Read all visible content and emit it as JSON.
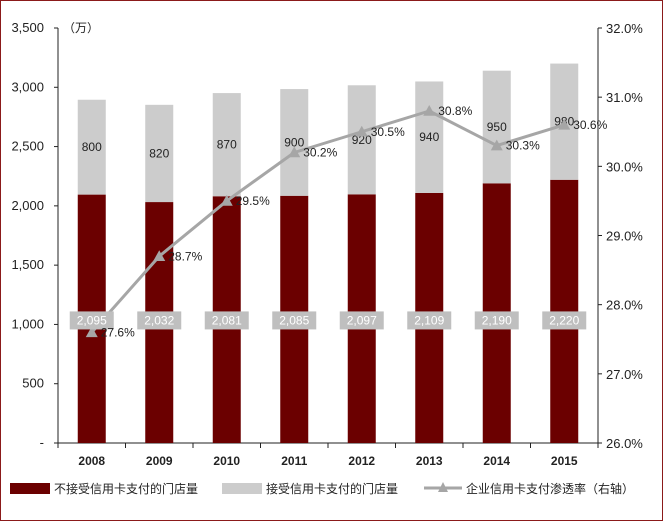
{
  "chart_data": {
    "type": "bar",
    "stacked": true,
    "unit_label": "（万）",
    "categories": [
      "2008",
      "2009",
      "2010",
      "2011",
      "2012",
      "2013",
      "2014",
      "2015"
    ],
    "series": [
      {
        "name": "不接受信用卡支付的门店量",
        "type": "bar",
        "axis": "left",
        "color": "#6b0000",
        "values": [
          2095,
          2032,
          2081,
          2085,
          2097,
          2109,
          2190,
          2220
        ],
        "labels": [
          "2,095",
          "2,032",
          "2,081",
          "2,085",
          "2,097",
          "2,109",
          "2,190",
          "2,220"
        ]
      },
      {
        "name": "接受信用卡支付的门店量",
        "type": "bar",
        "axis": "left",
        "color": "#cccccc",
        "values": [
          800,
          820,
          870,
          900,
          920,
          940,
          950,
          980
        ],
        "labels": [
          "800",
          "820",
          "870",
          "900",
          "920",
          "940",
          "950",
          "980"
        ]
      },
      {
        "name": "企业信用卡支付渗透率（右轴）",
        "type": "line",
        "axis": "right",
        "color": "#a6a6a6",
        "values": [
          27.6,
          28.7,
          29.5,
          30.2,
          30.5,
          30.8,
          30.3,
          30.6
        ],
        "labels": [
          "27.6%",
          "28.7%",
          "29.5%",
          "30.2%",
          "30.5%",
          "30.8%",
          "30.3%",
          "30.6%"
        ]
      }
    ],
    "y_left": {
      "min": 0,
      "max": 3500,
      "ticks": [
        0,
        500,
        1000,
        1500,
        2000,
        2500,
        3000,
        3500
      ],
      "tick_labels": [
        "-",
        "500",
        "1,000",
        "1,500",
        "2,000",
        "2,500",
        "3,000",
        "3,500"
      ]
    },
    "y_right": {
      "min": 26,
      "max": 32,
      "ticks": [
        26,
        27,
        28,
        29,
        30,
        31,
        32
      ],
      "tick_labels": [
        "26.0%",
        "27.0%",
        "28.0%",
        "29.0%",
        "30.0%",
        "31.0%",
        "32.0%"
      ]
    },
    "grid": false,
    "legend_position": "bottom"
  }
}
